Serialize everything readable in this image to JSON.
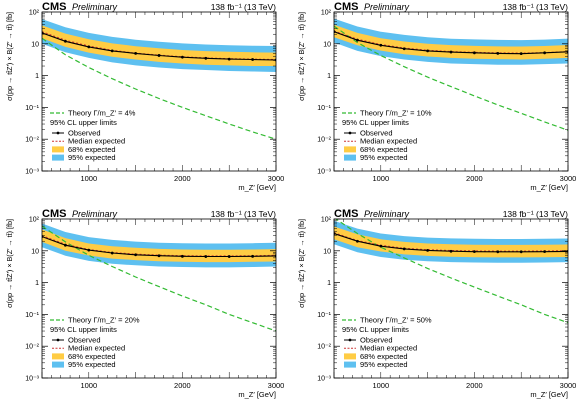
{
  "chart_data": [
    {
      "type": "line",
      "header_left": "CMS",
      "header_prelim": "Preliminary",
      "header_right": "138 fb⁻¹ (13 TeV)",
      "ylabel": "σ(pp → tt̄Z′) × B(Z′ → tt̄) [fb]",
      "xlabel": "m_Z′ [GeV]",
      "log_y": true,
      "xlim": [
        500,
        3000
      ],
      "ylim": [
        0.001,
        100
      ],
      "xticks": [
        "1000",
        "2000",
        "3000"
      ],
      "yticks": [
        "10⁻³",
        "10⁻²",
        "10⁻¹",
        "1",
        "10",
        "10²"
      ],
      "legend_placement": "bottom-left",
      "legend": {
        "theory": "Theory Γ/m_Z′ = 4%",
        "group_title": "95% CL upper limits",
        "observed": "Observed",
        "median": "Median expected",
        "band68": "68% expected",
        "band95": "95% expected"
      },
      "x": [
        500,
        750,
        1000,
        1250,
        1500,
        1750,
        2000,
        2250,
        2500,
        2750,
        3000
      ],
      "observed": [
        22,
        12,
        8.0,
        6.0,
        5.0,
        4.3,
        3.8,
        3.5,
        3.3,
        3.2,
        3.1
      ],
      "median": [
        24,
        13,
        8.5,
        6.3,
        5.1,
        4.4,
        3.9,
        3.6,
        3.4,
        3.3,
        3.2
      ],
      "band68": [
        [
          15,
          38
        ],
        [
          8,
          21
        ],
        [
          5.3,
          14
        ],
        [
          3.9,
          10.3
        ],
        [
          3.2,
          8.4
        ],
        [
          2.7,
          7.2
        ],
        [
          2.4,
          6.4
        ],
        [
          2.2,
          5.9
        ],
        [
          2.1,
          5.6
        ],
        [
          2.0,
          5.4
        ],
        [
          2.0,
          5.3
        ]
      ],
      "band95": [
        [
          10,
          60
        ],
        [
          5.4,
          33
        ],
        [
          3.6,
          22
        ],
        [
          2.6,
          16.5
        ],
        [
          2.1,
          13.5
        ],
        [
          1.8,
          11.6
        ],
        [
          1.6,
          10.3
        ],
        [
          1.5,
          9.5
        ],
        [
          1.4,
          9.0
        ],
        [
          1.35,
          8.7
        ],
        [
          1.3,
          8.5
        ]
      ],
      "theory": [
        15,
        4.5,
        1.8,
        0.8,
        0.38,
        0.19,
        0.1,
        0.055,
        0.03,
        0.017,
        0.01
      ],
      "colors": {
        "band68": "#ffcc44",
        "band95": "#5ec0f0",
        "theory": "#33bb33",
        "observed": "#000000",
        "median": "#cc3333"
      }
    },
    {
      "type": "line",
      "header_left": "CMS",
      "header_prelim": "Preliminary",
      "header_right": "138 fb⁻¹ (13 TeV)",
      "ylabel": "σ(pp → tt̄Z′) × B(Z′ → tt̄) [fb]",
      "xlabel": "m_Z′ [GeV]",
      "log_y": true,
      "xlim": [
        500,
        3000
      ],
      "ylim": [
        0.001,
        100
      ],
      "xticks": [
        "1000",
        "2000",
        "3000"
      ],
      "yticks": [
        "10⁻³",
        "10⁻²",
        "10⁻¹",
        "1",
        "10",
        "10²"
      ],
      "legend_placement": "bottom-left",
      "legend": {
        "theory": "Theory Γ/m_Z′ = 10%",
        "group_title": "95% CL upper limits",
        "observed": "Observed",
        "median": "Median expected",
        "band68": "68% expected",
        "band95": "95% expected"
      },
      "x": [
        500,
        750,
        1000,
        1250,
        1500,
        1750,
        2000,
        2250,
        2500,
        2750,
        3000
      ],
      "observed": [
        24,
        13,
        9.0,
        7.0,
        6.0,
        5.5,
        5.2,
        5.0,
        4.9,
        5.2,
        5.6
      ],
      "median": [
        25,
        14,
        9.5,
        7.4,
        6.3,
        5.7,
        5.4,
        5.2,
        5.1,
        5.3,
        5.7
      ],
      "band68": [
        [
          16,
          40
        ],
        [
          9,
          22
        ],
        [
          6.1,
          15
        ],
        [
          4.7,
          11.8
        ],
        [
          4.0,
          10.0
        ],
        [
          3.6,
          9.1
        ],
        [
          3.4,
          8.6
        ],
        [
          3.3,
          8.3
        ],
        [
          3.2,
          8.2
        ],
        [
          3.4,
          8.5
        ],
        [
          3.6,
          9.2
        ]
      ],
      "band95": [
        [
          11,
          62
        ],
        [
          6.0,
          35
        ],
        [
          4.1,
          24
        ],
        [
          3.2,
          19
        ],
        [
          2.7,
          16
        ],
        [
          2.4,
          14.5
        ],
        [
          2.3,
          13.8
        ],
        [
          2.2,
          13.3
        ],
        [
          2.2,
          13.1
        ],
        [
          2.3,
          13.6
        ],
        [
          2.4,
          14.6
        ]
      ],
      "theory": [
        36,
        11,
        4.3,
        1.9,
        0.9,
        0.45,
        0.23,
        0.12,
        0.065,
        0.035,
        0.019
      ],
      "colors": {
        "band68": "#ffcc44",
        "band95": "#5ec0f0",
        "theory": "#33bb33",
        "observed": "#000000",
        "median": "#cc3333"
      }
    },
    {
      "type": "line",
      "header_left": "CMS",
      "header_prelim": "Preliminary",
      "header_right": "138 fb⁻¹ (13 TeV)",
      "ylabel": "σ(pp → tt̄Z′) × B(Z′ → tt̄) [fb]",
      "xlabel": "m_Z′ [GeV]",
      "log_y": true,
      "xlim": [
        500,
        3000
      ],
      "ylim": [
        0.001,
        100
      ],
      "xticks": [
        "1000",
        "2000",
        "3000"
      ],
      "yticks": [
        "10⁻³",
        "10⁻²",
        "10⁻¹",
        "1",
        "10",
        "10²"
      ],
      "legend_placement": "bottom-left",
      "legend": {
        "theory": "Theory Γ/m_Z′ = 20%",
        "group_title": "95% CL upper limits",
        "observed": "Observed",
        "median": "Median expected",
        "band68": "68% expected",
        "band95": "95% expected"
      },
      "x": [
        500,
        750,
        1000,
        1250,
        1500,
        1750,
        2000,
        2250,
        2500,
        2750,
        3000
      ],
      "observed": [
        28,
        15,
        10.5,
        8.5,
        7.5,
        7.0,
        6.7,
        6.6,
        6.6,
        6.7,
        6.9
      ],
      "median": [
        30,
        16,
        11.0,
        8.9,
        7.9,
        7.3,
        7.0,
        6.9,
        6.9,
        7.0,
        7.2
      ],
      "band68": [
        [
          19,
          47
        ],
        [
          10,
          25
        ],
        [
          7.1,
          17
        ],
        [
          5.7,
          14
        ],
        [
          5.1,
          12.4
        ],
        [
          4.7,
          11.5
        ],
        [
          4.5,
          11.0
        ],
        [
          4.4,
          10.8
        ],
        [
          4.4,
          10.8
        ],
        [
          4.5,
          11.0
        ],
        [
          4.6,
          11.3
        ]
      ],
      "band95": [
        [
          13,
          72
        ],
        [
          7.0,
          39
        ],
        [
          4.8,
          27
        ],
        [
          3.9,
          22
        ],
        [
          3.5,
          19.5
        ],
        [
          3.2,
          18
        ],
        [
          3.1,
          17.3
        ],
        [
          3.0,
          17.0
        ],
        [
          3.0,
          17.0
        ],
        [
          3.1,
          17.3
        ],
        [
          3.2,
          17.8
        ]
      ],
      "theory": [
        60,
        19,
        7.2,
        3.2,
        1.5,
        0.75,
        0.38,
        0.2,
        0.1,
        0.055,
        0.03
      ],
      "colors": {
        "band68": "#ffcc44",
        "band95": "#5ec0f0",
        "theory": "#33bb33",
        "observed": "#000000",
        "median": "#cc3333"
      }
    },
    {
      "type": "line",
      "header_left": "CMS",
      "header_prelim": "Preliminary",
      "header_right": "138 fb⁻¹ (13 TeV)",
      "ylabel": "σ(pp → tt̄Z′) × B(Z′ → tt̄) [fb]",
      "xlabel": "m_Z′ [GeV]",
      "log_y": true,
      "xlim": [
        500,
        3000
      ],
      "ylim": [
        0.001,
        100
      ],
      "xticks": [
        "1000",
        "2000",
        "3000"
      ],
      "yticks": [
        "10⁻³",
        "10⁻²",
        "10⁻¹",
        "1",
        "10",
        "10²"
      ],
      "legend_placement": "bottom-left",
      "legend": {
        "theory": "Theory Γ/m_Z′ = 50%",
        "group_title": "95% CL upper limits",
        "observed": "Observed",
        "median": "Median expected",
        "band68": "68% expected",
        "band95": "95% expected"
      },
      "x": [
        500,
        750,
        1000,
        1250,
        1500,
        1750,
        2000,
        2250,
        2500,
        2750,
        3000
      ],
      "observed": [
        35,
        20,
        14,
        11.5,
        10.3,
        9.7,
        9.4,
        9.3,
        9.3,
        9.4,
        9.6
      ],
      "median": [
        37,
        21,
        15,
        12,
        10.8,
        10.2,
        9.9,
        9.8,
        9.8,
        9.9,
        10.1
      ],
      "band68": [
        [
          23,
          58
        ],
        [
          13,
          33
        ],
        [
          9.5,
          23
        ],
        [
          7.7,
          19
        ],
        [
          6.9,
          17
        ],
        [
          6.5,
          16
        ],
        [
          6.3,
          15.5
        ],
        [
          6.2,
          15.3
        ],
        [
          6.2,
          15.3
        ],
        [
          6.3,
          15.5
        ],
        [
          6.4,
          15.8
        ]
      ],
      "band95": [
        [
          16,
          88
        ],
        [
          9,
          50
        ],
        [
          6.4,
          35
        ],
        [
          5.2,
          29
        ],
        [
          4.7,
          26
        ],
        [
          4.4,
          24.5
        ],
        [
          4.3,
          23.8
        ],
        [
          4.2,
          23.5
        ],
        [
          4.2,
          23.5
        ],
        [
          4.3,
          23.8
        ],
        [
          4.4,
          24.3
        ]
      ],
      "theory": [
        110,
        35,
        13,
        6,
        2.8,
        1.4,
        0.72,
        0.38,
        0.2,
        0.1,
        0.055
      ],
      "colors": {
        "band68": "#ffcc44",
        "band95": "#5ec0f0",
        "theory": "#33bb33",
        "observed": "#000000",
        "median": "#cc3333"
      }
    }
  ]
}
